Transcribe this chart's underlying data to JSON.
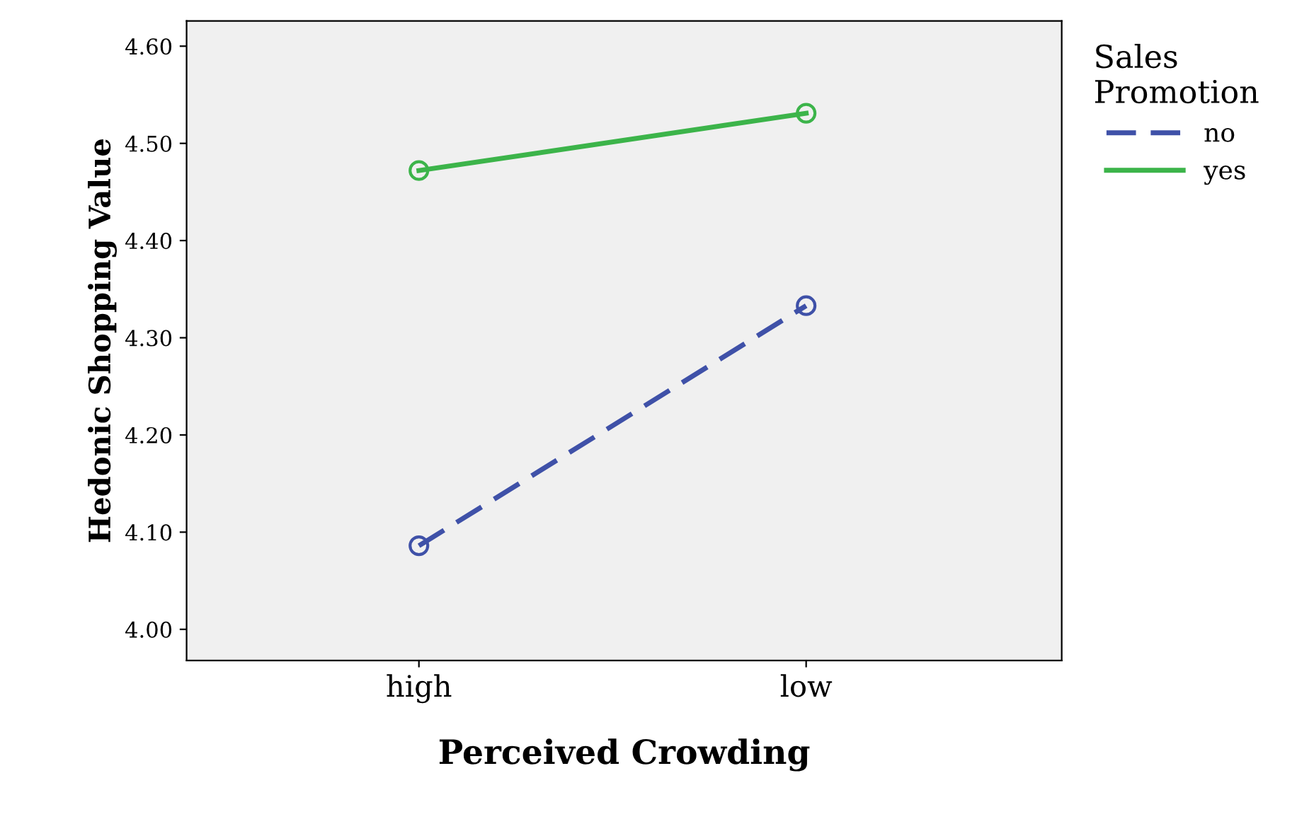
{
  "chart_data": {
    "type": "line",
    "xlabel": "Perceived Crowding",
    "ylabel": "Hedonic Shopping Value",
    "legend_title": "Sales\nPromotion",
    "categories": [
      "high",
      "low"
    ],
    "series": [
      {
        "name": "no",
        "color": "#3f51a8",
        "values": [
          4.086,
          4.333
        ],
        "line_style": "dashed"
      },
      {
        "name": "yes",
        "color": "#3cb44a",
        "values": [
          4.472,
          4.531
        ],
        "line_style": "solid"
      }
    ],
    "ylim": [
      3.968,
      4.626
    ],
    "yticks": [
      {
        "value": 4.0,
        "label": "4.00"
      },
      {
        "value": 4.1,
        "label": "4.10"
      },
      {
        "value": 4.2,
        "label": "4.20"
      },
      {
        "value": 4.3,
        "label": "4.30"
      },
      {
        "value": 4.4,
        "label": "4.40"
      },
      {
        "value": 4.5,
        "label": "4.50"
      },
      {
        "value": 4.6,
        "label": "4.60"
      }
    ],
    "marker": "circle",
    "legend": "right",
    "grid": false
  }
}
